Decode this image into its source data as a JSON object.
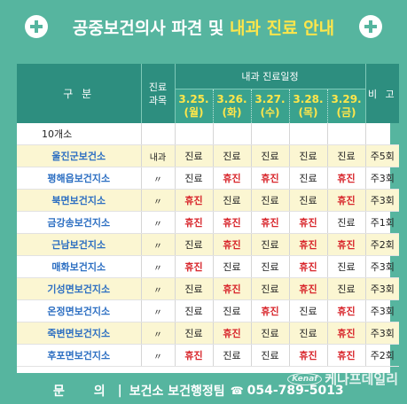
{
  "title": {
    "main": "공중보건의사 파견 및 ",
    "highlight": "내과 진료 안내"
  },
  "header": {
    "col_gu": "구 분",
    "col_subject": "진료\n과목",
    "col_schedule": "내과 진료일정",
    "col_note": "비 고",
    "days": [
      {
        "date": "3.25.",
        "dow": "(월)"
      },
      {
        "date": "3.26.",
        "dow": "(화)"
      },
      {
        "date": "3.27.",
        "dow": "(수)"
      },
      {
        "date": "3.28.",
        "dow": "(목)"
      },
      {
        "date": "3.29.",
        "dow": "(금)"
      }
    ]
  },
  "group_label": "10개소",
  "rows": [
    {
      "name": "울진군보건소",
      "subject": "내과",
      "days": [
        "진료",
        "진료",
        "진료",
        "진료",
        "진료"
      ],
      "note": "주5회"
    },
    {
      "name": "평해읍보건지소",
      "subject": "〃",
      "days": [
        "진료",
        "휴진",
        "휴진",
        "진료",
        "휴진"
      ],
      "note": "주3회"
    },
    {
      "name": "북면보건지소",
      "subject": "〃",
      "days": [
        "휴진",
        "진료",
        "진료",
        "진료",
        "휴진"
      ],
      "note": "주3회"
    },
    {
      "name": "금강송보건지소",
      "subject": "〃",
      "days": [
        "휴진",
        "휴진",
        "휴진",
        "휴진",
        "진료"
      ],
      "note": "주1회"
    },
    {
      "name": "근남보건지소",
      "subject": "〃",
      "days": [
        "진료",
        "휴진",
        "진료",
        "휴진",
        "휴진"
      ],
      "note": "주2회"
    },
    {
      "name": "매화보건지소",
      "subject": "〃",
      "days": [
        "휴진",
        "진료",
        "진료",
        "휴진",
        "진료"
      ],
      "note": "주3회"
    },
    {
      "name": "기성면보건지소",
      "subject": "〃",
      "days": [
        "진료",
        "휴진",
        "진료",
        "휴진",
        "진료"
      ],
      "note": "주3회"
    },
    {
      "name": "온정면보건지소",
      "subject": "〃",
      "days": [
        "진료",
        "진료",
        "휴진",
        "진료",
        "휴진"
      ],
      "note": "주3회"
    },
    {
      "name": "죽변면보건지소",
      "subject": "〃",
      "days": [
        "진료",
        "휴진",
        "진료",
        "진료",
        "휴진"
      ],
      "note": "주3회"
    },
    {
      "name": "후포면보건지소",
      "subject": "〃",
      "days": [
        "휴진",
        "진료",
        "진료",
        "휴진",
        "휴진"
      ],
      "note": "주2회"
    }
  ],
  "footer": {
    "inquiry": "문 의",
    "separator": "|",
    "dept": "보건소 보건행정팀",
    "phone": "054-789-5013"
  },
  "watermark": {
    "logo": "Kenaf",
    "text": "케나프데일리"
  },
  "colors": {
    "background": "#56b59f",
    "header": "#2d8e7f",
    "highlight": "#ffe64a",
    "rest": "#d8252b",
    "name": "#2d6fc2"
  }
}
